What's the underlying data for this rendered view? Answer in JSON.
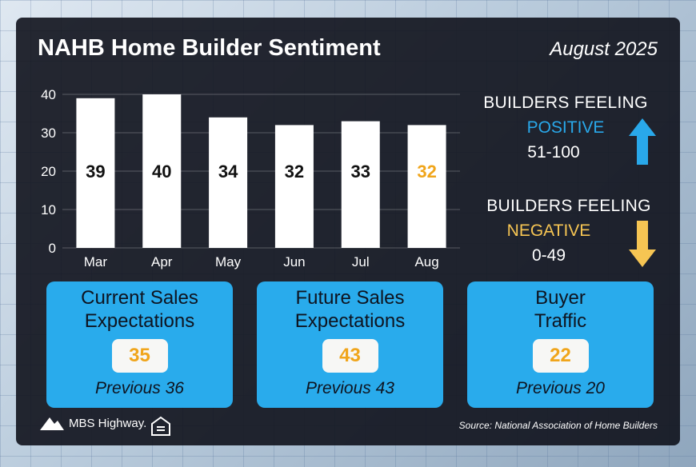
{
  "header": {
    "title": "NAHB Home Builder Sentiment",
    "date": "August 2025"
  },
  "chart_data": {
    "type": "bar",
    "categories": [
      "Mar",
      "Apr",
      "May",
      "Jun",
      "Jul",
      "Aug"
    ],
    "values": [
      39,
      40,
      34,
      32,
      33,
      32
    ],
    "ylim": [
      0,
      40
    ],
    "yticks": [
      0,
      10,
      20,
      30,
      40
    ],
    "grid": true,
    "bar_color": "#ffffff",
    "label_color": "#111111",
    "highlight_index": 5,
    "highlight_label_color": "#f0a51b"
  },
  "legend": {
    "positive": {
      "caption": "BUILDERS FEELING",
      "label": "POSITIVE",
      "range": "51-100",
      "color": "#29a8ea",
      "icon": "arrow-up-icon"
    },
    "negative": {
      "caption": "BUILDERS FEELING",
      "label": "NEGATIVE",
      "range": "0-49",
      "color": "#f6c553",
      "icon": "arrow-down-icon"
    }
  },
  "metrics": [
    {
      "line1": "Current Sales",
      "line2": "Expectations",
      "value": "35",
      "previous": "Previous 36"
    },
    {
      "line1": "Future Sales",
      "line2": "Expectations",
      "value": "43",
      "previous": "Previous 43"
    },
    {
      "line1": "Buyer",
      "line2": "Traffic",
      "value": "22",
      "previous": "Previous 20"
    }
  ],
  "footer": {
    "brand": "MBS Highway.",
    "source": "Source: National Association of Home Builders",
    "brand_icon": "mountain-logo-icon",
    "housing_icon": "equal-housing-icon"
  }
}
